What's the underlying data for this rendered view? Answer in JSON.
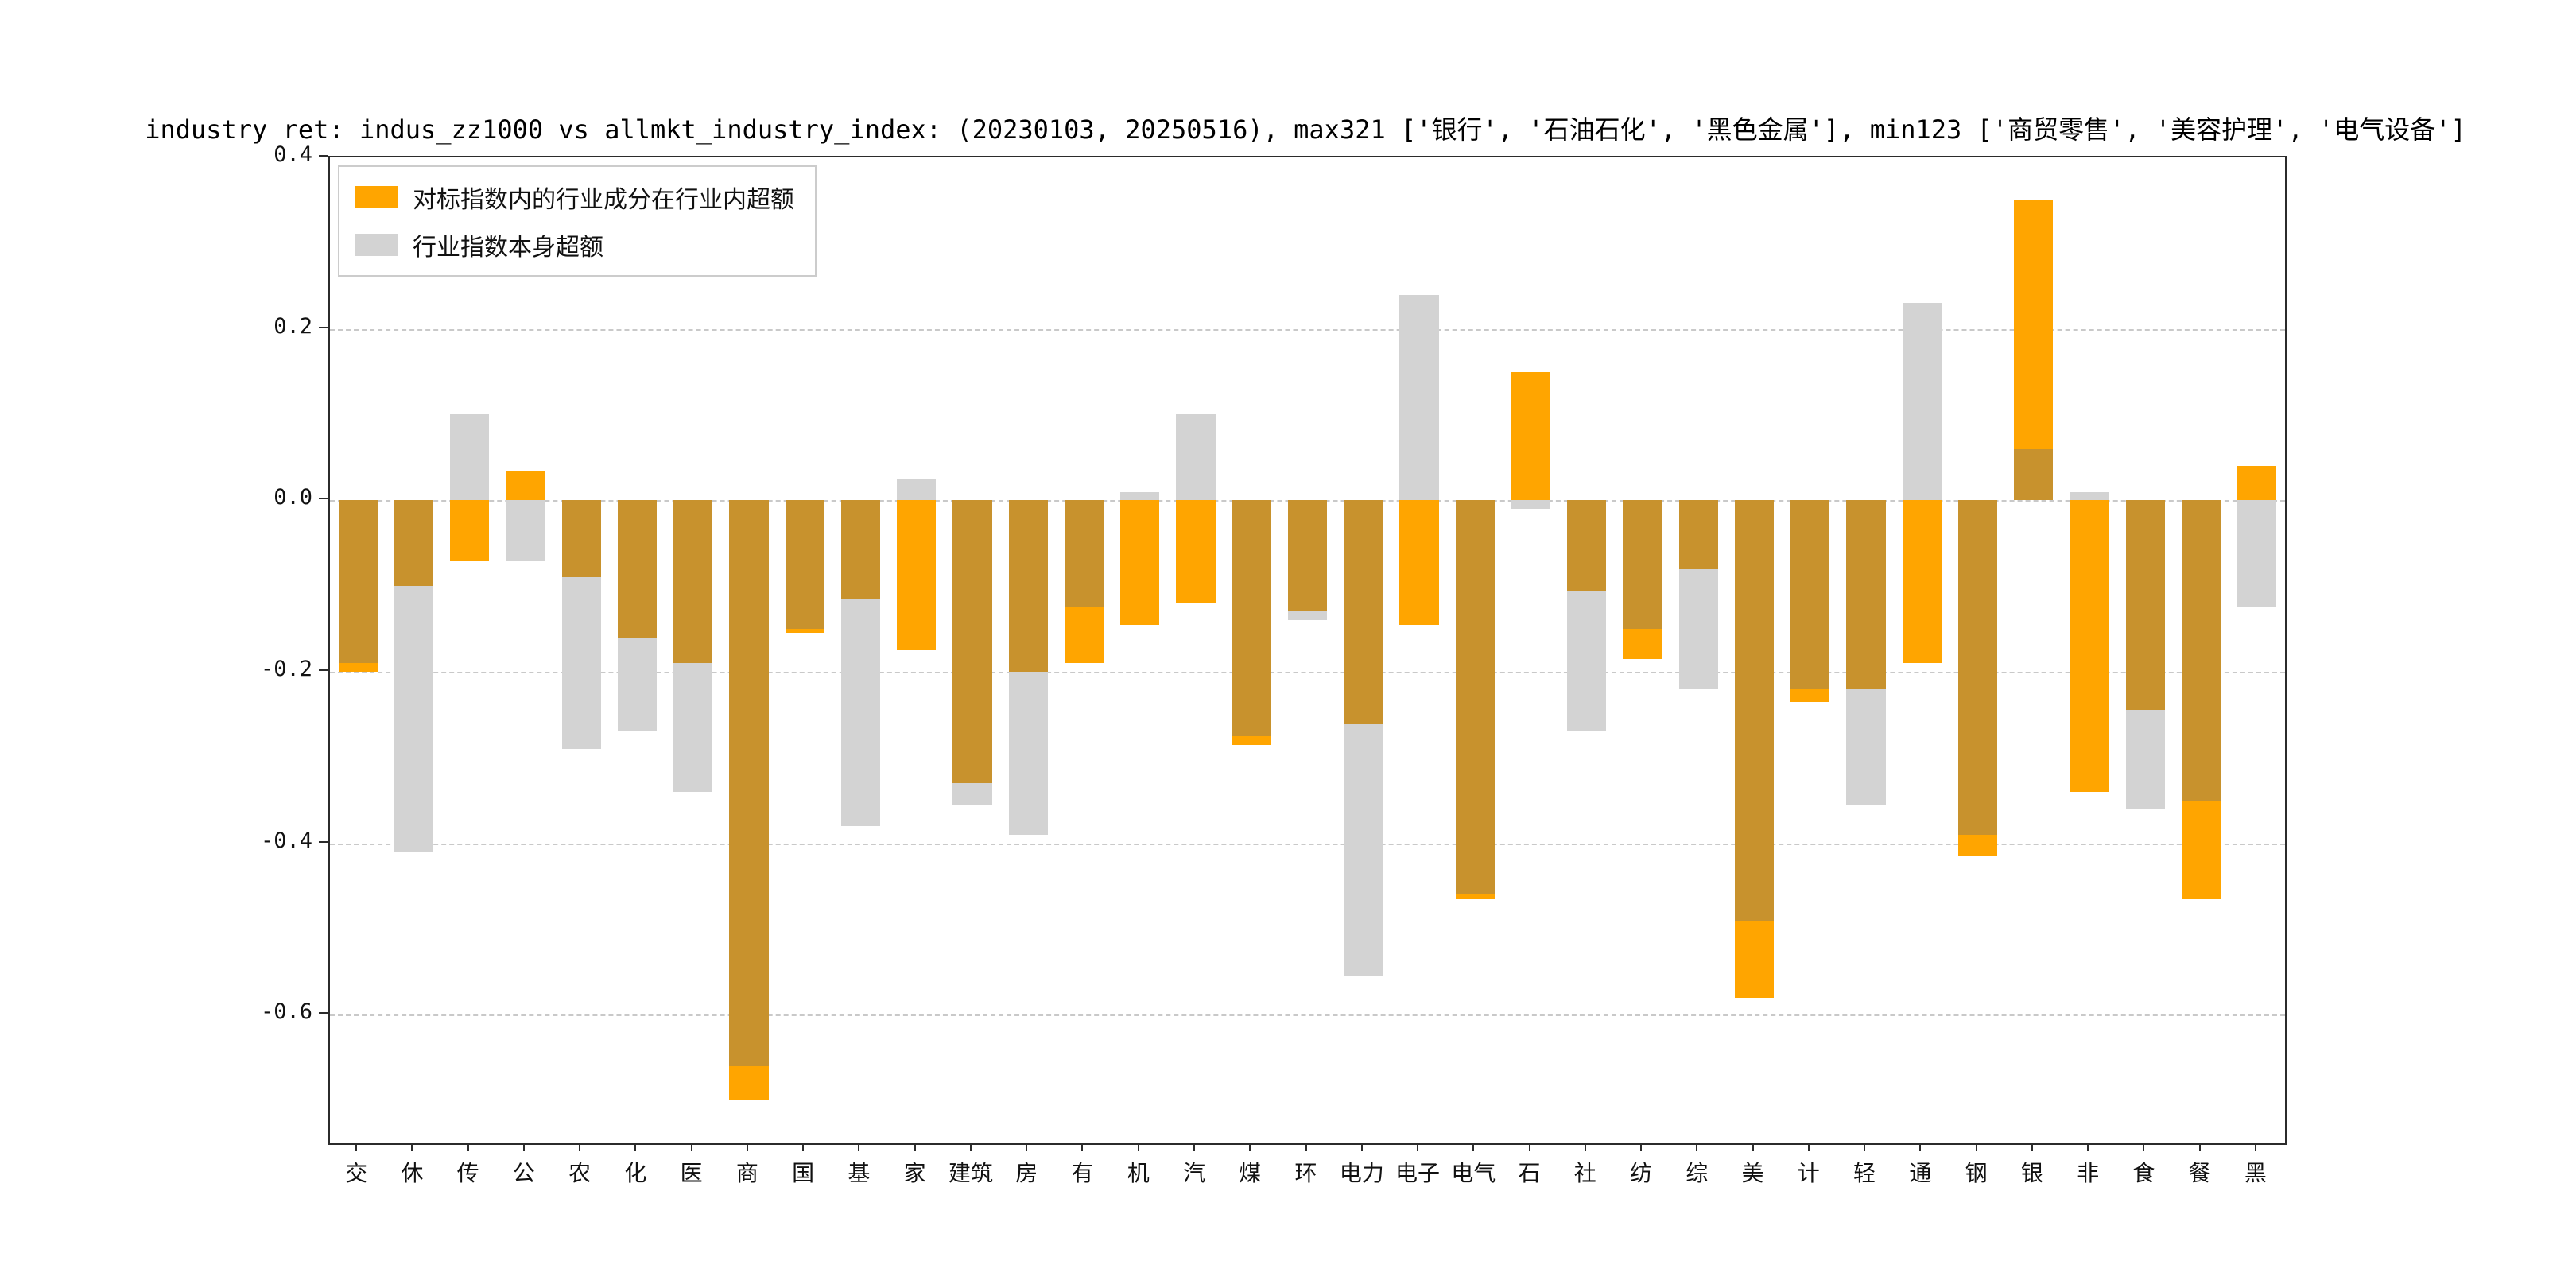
{
  "title": "industry ret: indus_zz1000 vs allmkt_industry_index: (20230103, 20250516), max321 ['银行', '石油石化', '黑色金属'], min123 ['商贸零售', '美容护理', '电气设备']",
  "legend": {
    "items": [
      {
        "label": "对标指数内的行业成分在行业内超额",
        "color": "#FFA500"
      },
      {
        "label": "行业指数本身超额",
        "color": "#D3D3D3"
      }
    ]
  },
  "colors": {
    "orange_series": "#FFA500",
    "gray_series": "#D3D3D3",
    "overlap": "#C8922D",
    "grid": "#C9C9C9",
    "axis": "#2B2B2B"
  },
  "chart_data": {
    "type": "bar",
    "title": "industry ret: indus_zz1000 vs allmkt_industry_index: (20230103, 20250516), max321 ['银行', '石油石化', '黑色金属'], min123 ['商贸零售', '美容护理', '电气设备']",
    "categories": [
      "交",
      "休",
      "传",
      "公",
      "农",
      "化",
      "医",
      "商",
      "国",
      "基",
      "家",
      "建筑",
      "房",
      "有",
      "机",
      "汽",
      "煤",
      "环",
      "电力",
      "电子",
      "电气",
      "石",
      "社",
      "纺",
      "综",
      "美",
      "计",
      "轻",
      "通",
      "钢",
      "银",
      "非",
      "食",
      "餐",
      "黑"
    ],
    "series": [
      {
        "name": "对标指数内的行业成分在行业内超额",
        "color": "#FFA500",
        "values": [
          -0.2,
          -0.1,
          -0.07,
          0.035,
          -0.09,
          -0.16,
          -0.19,
          -0.7,
          -0.155,
          -0.115,
          -0.175,
          -0.33,
          -0.2,
          -0.19,
          -0.145,
          -0.12,
          -0.285,
          -0.13,
          -0.26,
          -0.145,
          -0.465,
          0.15,
          -0.105,
          -0.185,
          -0.08,
          -0.58,
          -0.235,
          -0.22,
          -0.19,
          -0.415,
          0.35,
          -0.34,
          -0.245,
          -0.465,
          0.04
        ]
      },
      {
        "name": "行业指数本身超额",
        "color": "#D3D3D3",
        "values": [
          -0.19,
          -0.41,
          0.1,
          -0.07,
          -0.29,
          -0.27,
          -0.34,
          -0.66,
          -0.15,
          -0.38,
          0.025,
          -0.355,
          -0.39,
          -0.125,
          0.01,
          0.1,
          -0.275,
          -0.14,
          -0.555,
          0.24,
          -0.46,
          -0.01,
          -0.27,
          -0.15,
          -0.22,
          -0.49,
          -0.22,
          -0.355,
          0.23,
          -0.39,
          0.06,
          0.01,
          -0.36,
          -0.35,
          -0.125
        ]
      }
    ],
    "overlap_color": "#C8922D",
    "xlabel": "",
    "ylabel": "",
    "ylim": [
      -0.75,
      0.4
    ],
    "yticks": [
      0.4,
      0.2,
      0.0,
      -0.2,
      -0.4,
      -0.6
    ],
    "grid": "horizontal-dashed",
    "legend_position": "upper-left",
    "bars_overlaid": true
  }
}
